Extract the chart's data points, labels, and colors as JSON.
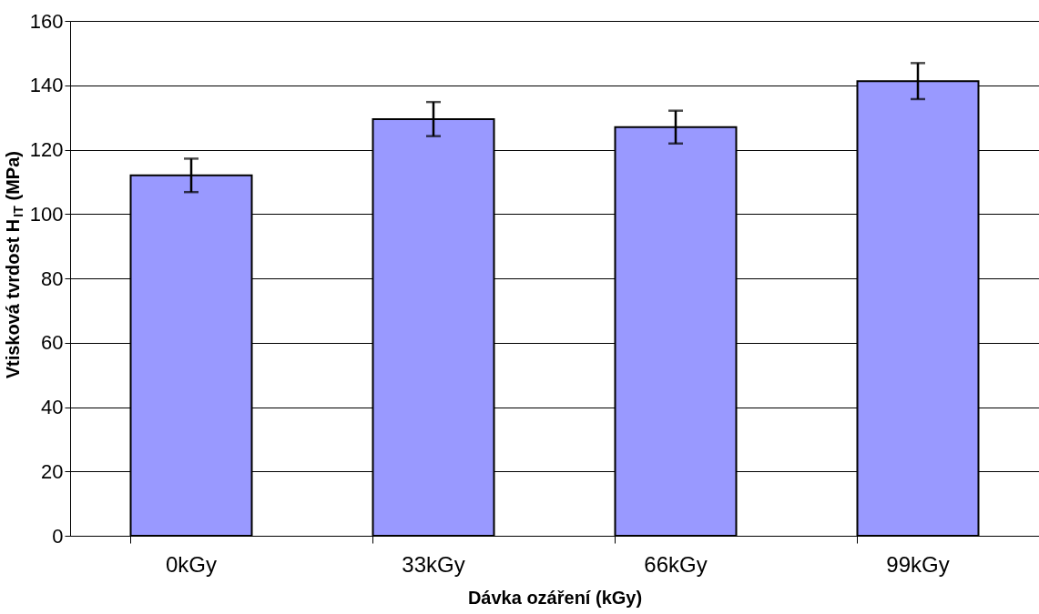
{
  "chart_data": {
    "type": "bar",
    "xlabel": "Dávka ozáření (kGy)",
    "ylabel": "Vtisková tvrdost H$_{IT}$ (MPa)",
    "categories": [
      "0kGy",
      "33kGy",
      "66kGy",
      "99kGy"
    ],
    "series": [
      {
        "color": "#9999ff",
        "values": [
          112,
          129.5,
          127,
          141.3
        ],
        "errors": [
          5.2,
          5.3,
          5.1,
          5.6
        ]
      }
    ],
    "ylim": [
      0,
      160
    ],
    "yticks": [
      0,
      20,
      40,
      60,
      80,
      100,
      120,
      140,
      160
    ],
    "grid": "y"
  }
}
